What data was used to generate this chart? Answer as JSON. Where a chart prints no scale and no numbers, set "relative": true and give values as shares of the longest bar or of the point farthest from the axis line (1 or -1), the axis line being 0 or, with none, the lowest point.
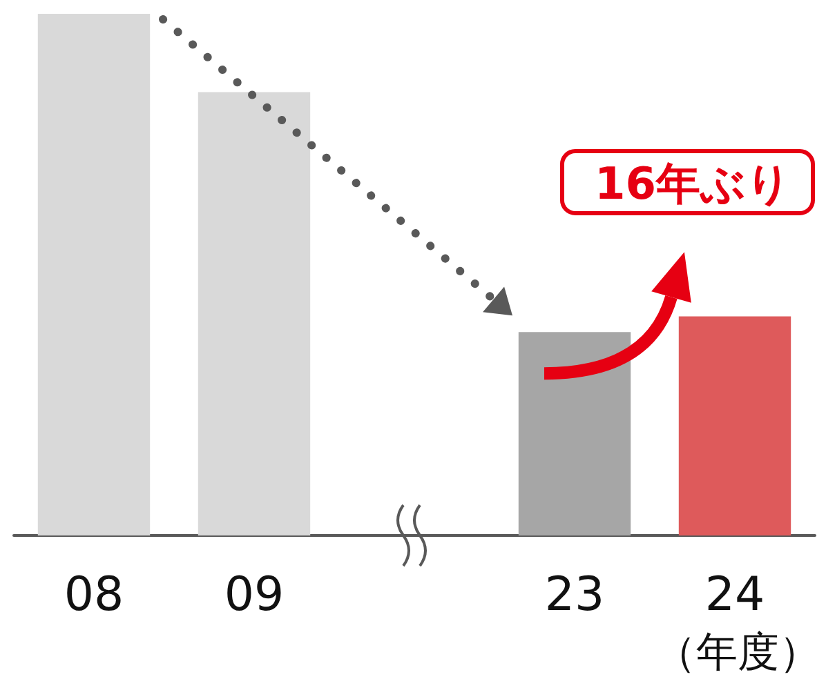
{
  "chart_data": {
    "type": "bar",
    "relative": true,
    "categories": [
      "08",
      "09",
      null,
      "23",
      "24"
    ],
    "values": [
      1,
      0.85,
      null,
      0.39,
      0.42
    ],
    "colors": [
      "#d9d9d9",
      "#d9d9d9",
      "#d9d9d9",
      "#a6a6a6",
      "#de5a5b"
    ],
    "xlabel": "（年度）",
    "annotations": [
      "16年ぶり"
    ]
  }
}
